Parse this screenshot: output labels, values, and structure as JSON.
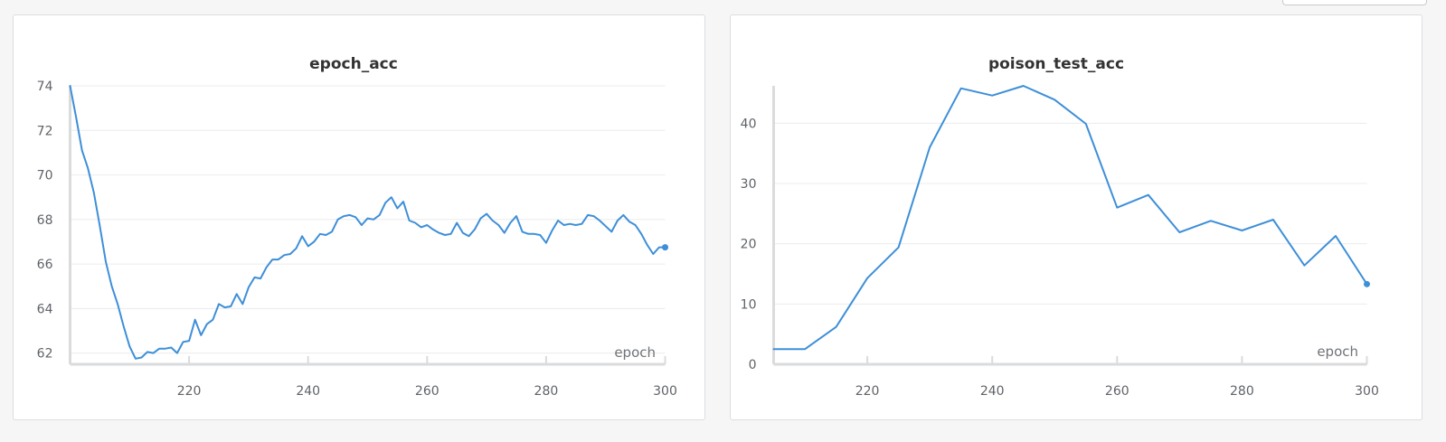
{
  "colors": {
    "series": "#3d8fd8",
    "panel_border": "#dcdde0",
    "background": "#f6f6f7"
  },
  "chart_data": [
    {
      "type": "line",
      "title": "epoch_acc",
      "xlabel": "epoch",
      "ylabel": "",
      "xlim": [
        200,
        300
      ],
      "ylim": [
        61.7,
        74
      ],
      "xticks": [
        220,
        240,
        260,
        280,
        300
      ],
      "yticks": [
        62,
        64,
        66,
        68,
        70,
        72,
        74
      ],
      "grid": true,
      "last_point_marker": true,
      "series": [
        {
          "x": [
            200,
            201,
            202,
            203,
            204,
            205,
            206,
            207,
            208,
            209,
            210,
            211,
            212,
            213,
            214,
            215,
            216,
            217,
            218,
            219,
            220,
            221,
            222,
            223,
            224,
            225,
            226,
            227,
            228,
            229,
            230,
            231,
            232,
            233,
            234,
            235,
            236,
            237,
            238,
            239,
            240,
            241,
            242,
            243,
            244,
            245,
            246,
            247,
            248,
            249,
            250,
            251,
            252,
            253,
            254,
            255,
            256,
            257,
            258,
            259,
            260,
            261,
            262,
            263,
            264,
            265,
            266,
            267,
            268,
            269,
            270,
            271,
            272,
            273,
            274,
            275,
            276,
            277,
            278,
            279,
            280,
            281,
            282,
            283,
            284,
            285,
            286,
            287,
            288,
            289,
            290,
            291,
            292,
            293,
            294,
            295,
            296,
            297,
            298,
            299,
            300
          ],
          "values": [
            74.0,
            72.6,
            71.1,
            70.3,
            69.2,
            67.7,
            66.1,
            65.0,
            64.2,
            63.2,
            62.3,
            61.75,
            61.8,
            62.05,
            62.0,
            62.2,
            62.2,
            62.25,
            62.0,
            62.5,
            62.55,
            63.5,
            62.8,
            63.3,
            63.5,
            64.2,
            64.05,
            64.1,
            64.65,
            64.2,
            64.95,
            65.4,
            65.35,
            65.85,
            66.2,
            66.2,
            66.4,
            66.45,
            66.7,
            67.25,
            66.8,
            67.0,
            67.35,
            67.3,
            67.45,
            68.0,
            68.15,
            68.2,
            68.1,
            67.75,
            68.05,
            68.0,
            68.2,
            68.75,
            69.0,
            68.5,
            68.8,
            67.95,
            67.85,
            67.65,
            67.75,
            67.55,
            67.4,
            67.3,
            67.35,
            67.85,
            67.4,
            67.25,
            67.55,
            68.05,
            68.25,
            67.95,
            67.75,
            67.4,
            67.85,
            68.15,
            67.45,
            67.35,
            67.35,
            67.3,
            66.95,
            67.5,
            67.95,
            67.75,
            67.8,
            67.75,
            67.8,
            68.2,
            68.15,
            67.95,
            67.7,
            67.45,
            67.95,
            68.2,
            67.9,
            67.75,
            67.35,
            66.85,
            66.45,
            66.75,
            66.75
          ]
        }
      ]
    },
    {
      "type": "line",
      "title": "poison_test_acc",
      "xlabel": "epoch",
      "ylabel": "",
      "xlim": [
        205,
        300
      ],
      "ylim": [
        0,
        46.2
      ],
      "xticks": [
        220,
        240,
        260,
        280,
        300
      ],
      "yticks": [
        0,
        10,
        20,
        30,
        40
      ],
      "grid": true,
      "last_point_marker": true,
      "series": [
        {
          "x": [
            205,
            210,
            215,
            220,
            225,
            230,
            235,
            240,
            245,
            250,
            255,
            260,
            265,
            270,
            275,
            280,
            285,
            290,
            295,
            300
          ],
          "values": [
            2.5,
            2.5,
            6.2,
            14.3,
            19.4,
            36.0,
            45.8,
            44.6,
            46.2,
            43.9,
            39.9,
            26.0,
            28.1,
            21.9,
            23.8,
            22.2,
            24.0,
            16.4,
            21.3,
            13.3
          ]
        }
      ]
    }
  ]
}
